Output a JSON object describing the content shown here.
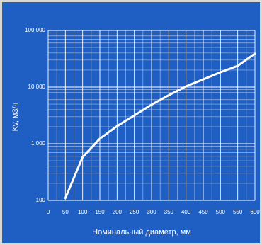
{
  "chart_data": {
    "type": "line",
    "x_label": "Номинальный диаметр, мм",
    "y_label": "Kv, м3/ч",
    "x": [
      50,
      100,
      150,
      200,
      250,
      300,
      350,
      400,
      450,
      500,
      550,
      600
    ],
    "values": [
      110,
      580,
      1230,
      2050,
      3160,
      4900,
      7200,
      10300,
      13700,
      18300,
      23700,
      39000
    ],
    "color": "#ffffff",
    "xlim": [
      0,
      600
    ],
    "xticks": [
      0,
      50,
      100,
      150,
      200,
      250,
      300,
      350,
      400,
      450,
      500,
      550,
      600
    ],
    "x_minor_grid": [
      25,
      75,
      125,
      175,
      225,
      275,
      325,
      375,
      425,
      475,
      525,
      575
    ],
    "ylim": [
      100,
      100000
    ],
    "y_log": true,
    "yticks": [
      100,
      {
        "value": 1000,
        "label": "1,000"
      },
      {
        "value": 10000,
        "label": "10,000"
      },
      {
        "value": 100000,
        "label": "100,000"
      }
    ],
    "y_minor_grid": [
      200,
      300,
      400,
      500,
      600,
      700,
      800,
      900,
      2000,
      3000,
      4000,
      5000,
      6000,
      7000,
      8000,
      9000,
      20000,
      30000,
      40000,
      50000,
      60000,
      70000,
      80000,
      90000
    ],
    "grid": true
  }
}
